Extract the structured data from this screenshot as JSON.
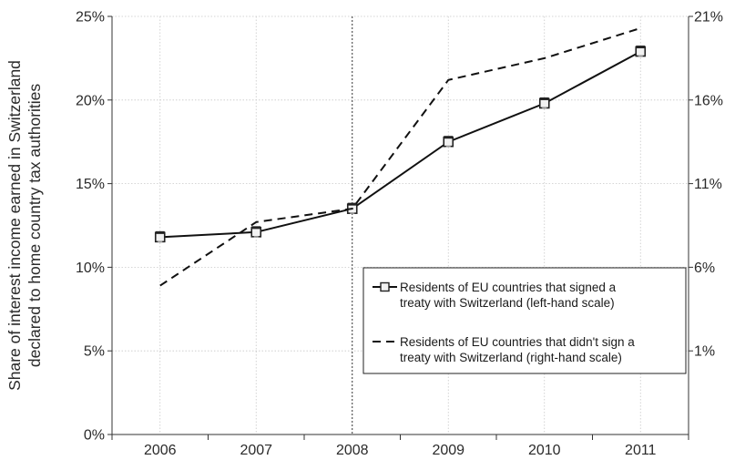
{
  "chart_data": {
    "type": "line",
    "categories": [
      "2006",
      "2007",
      "2008",
      "2009",
      "2010",
      "2011"
    ],
    "ylabel_lines": [
      "Share of interest income earned in Switzerland",
      "declared to home country tax authorities"
    ],
    "left_axis": {
      "ylim": [
        0,
        25
      ],
      "ticks": [
        0,
        5,
        10,
        15,
        20,
        25
      ],
      "tick_labels": [
        "0%",
        "5%",
        "10%",
        "15%",
        "20%",
        "25%"
      ]
    },
    "right_axis": {
      "ylim": [
        -4,
        21
      ],
      "ticks": [
        1,
        6,
        11,
        16,
        21
      ],
      "tick_labels": [
        "1%",
        "6%",
        "11%",
        "16%",
        "21%"
      ]
    },
    "series": [
      {
        "name_lines": [
          "Residents of EU countries that signed a",
          "treaty with Switzerland (left-hand scale)"
        ],
        "axis": "left",
        "style": "solid-with-square-markers",
        "values": [
          11.8,
          12.1,
          13.5,
          17.5,
          19.8,
          22.9
        ]
      },
      {
        "name_lines": [
          "Residents of EU countries that didn't sign a",
          "treaty with Switzerland (right-hand scale)"
        ],
        "axis": "right",
        "style": "dashed",
        "values": [
          4.9,
          8.7,
          9.5,
          17.2,
          18.5,
          20.3
        ]
      }
    ],
    "vertical_reference": {
      "category": "2008",
      "style": "dotted"
    },
    "grid": true,
    "legend_position": "center-right"
  }
}
